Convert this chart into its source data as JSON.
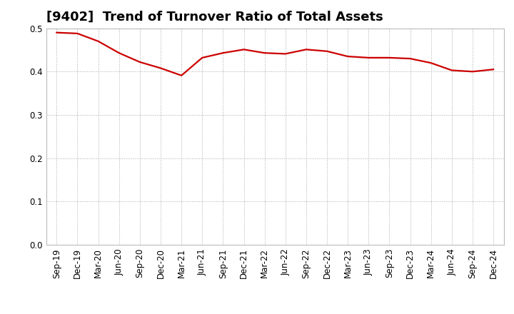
{
  "title": "[9402]  Trend of Turnover Ratio of Total Assets",
  "x_labels": [
    "Sep-19",
    "Dec-19",
    "Mar-20",
    "Jun-20",
    "Sep-20",
    "Dec-20",
    "Mar-21",
    "Jun-21",
    "Sep-21",
    "Dec-21",
    "Mar-22",
    "Jun-22",
    "Sep-22",
    "Dec-22",
    "Mar-23",
    "Jun-23",
    "Sep-23",
    "Dec-23",
    "Mar-24",
    "Jun-24",
    "Sep-24",
    "Dec-24"
  ],
  "values": [
    0.49,
    0.488,
    0.47,
    0.443,
    0.422,
    0.408,
    0.391,
    0.432,
    0.443,
    0.451,
    0.443,
    0.441,
    0.451,
    0.447,
    0.435,
    0.432,
    0.432,
    0.43,
    0.42,
    0.403,
    0.4,
    0.405
  ],
  "line_color": "#cc0000",
  "line_width": 1.6,
  "ylim": [
    0.0,
    0.5
  ],
  "yticks": [
    0.0,
    0.1,
    0.2,
    0.3,
    0.4,
    0.5
  ],
  "grid_color": "#aaaaaa",
  "grid_style": "dotted",
  "background_color": "#ffffff",
  "title_fontsize": 13,
  "tick_fontsize": 8.5
}
